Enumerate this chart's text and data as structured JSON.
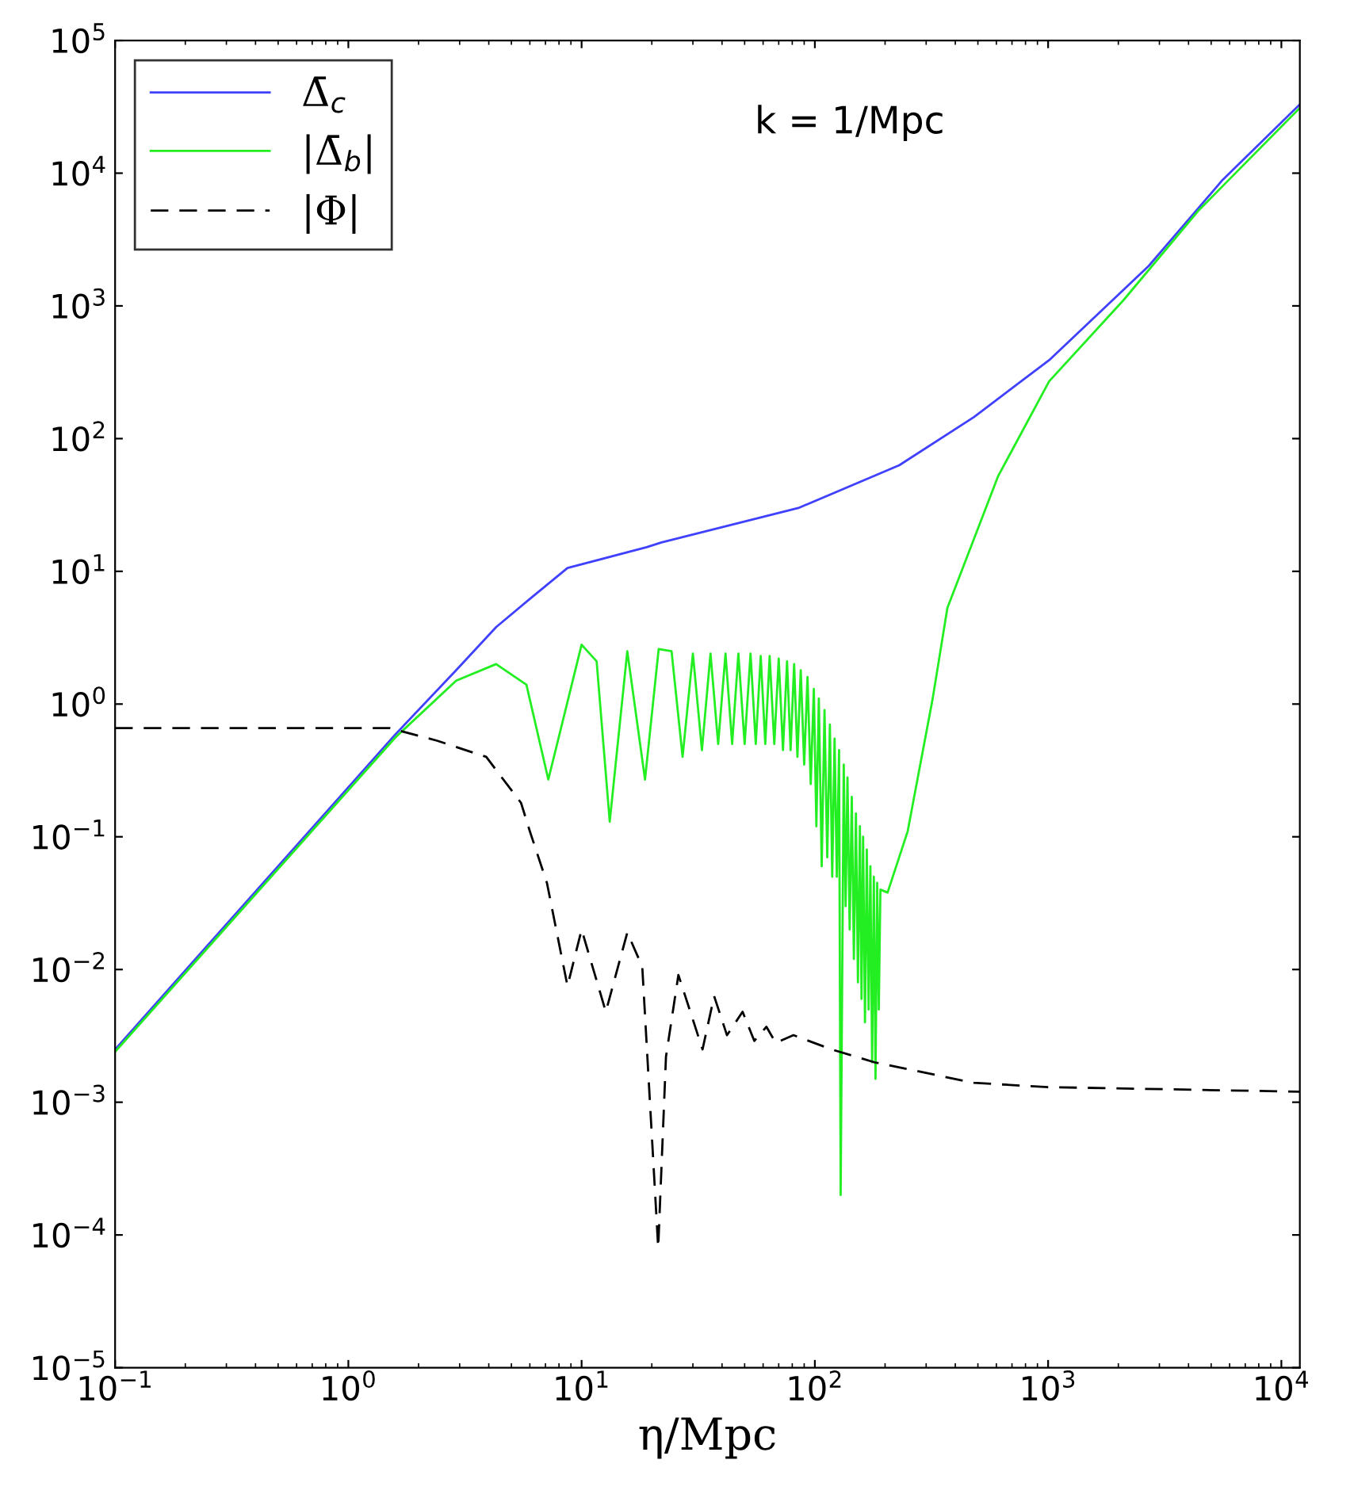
{
  "chart_data": {
    "type": "line",
    "xlabel": "η/Mpc",
    "log": "xy",
    "legend": "top left",
    "annotations": [
      "k = 1/Mpc"
    ],
    "xlim": [
      0.1,
      12000
    ],
    "ylim": [
      1e-05,
      100000.0
    ],
    "xticks": [
      {
        "value": 0.1,
        "label": "10$^{−1}$"
      },
      {
        "value": 1,
        "label": "10$^{0}$"
      },
      {
        "value": 10,
        "label": "10$^{1}$"
      },
      {
        "value": 100,
        "label": "10$^{2}$"
      },
      {
        "value": 1000,
        "label": "10$^{3}$"
      },
      {
        "value": 10000,
        "label": "10$^{4}$"
      }
    ],
    "yticks": [
      {
        "value": 1e-05,
        "label": "10$^{−5}$"
      },
      {
        "value": 0.0001,
        "label": "10$^{−4}$"
      },
      {
        "value": 0.001,
        "label": "10$^{−3}$"
      },
      {
        "value": 0.01,
        "label": "10$^{−2}$"
      },
      {
        "value": 0.1,
        "label": "10$^{−1}$"
      },
      {
        "value": 1,
        "label": "10$^{0}$"
      },
      {
        "value": 10,
        "label": "10$^{1}$"
      },
      {
        "value": 100,
        "label": "10$^{2}$"
      },
      {
        "value": 1000,
        "label": "10$^{3}$"
      },
      {
        "value": 10000,
        "label": "10$^{4}$"
      },
      {
        "value": 100000,
        "label": "10$^{5}$"
      }
    ],
    "series": [
      {
        "name": "Δ̄$_{c}$",
        "color": "#4040ff",
        "line_style": "solid",
        "x": [
          0.1,
          1.59,
          2.9,
          4.3,
          6.0,
          8.7,
          19,
          22,
          85,
          230,
          480,
          1010,
          2700,
          5600,
          12000
        ],
        "values": [
          0.0025,
          0.59,
          1.8,
          3.8,
          6.2,
          10.6,
          15.2,
          16.5,
          30,
          63,
          145,
          390,
          2000,
          8900,
          33000
        ]
      },
      {
        "name": "|Δ̄$_{b}$|",
        "color": "#22ee22",
        "line_style": "solid",
        "x": [
          0.1,
          1.59,
          2.9,
          4.3,
          5.8,
          7.2,
          10,
          11.6,
          13.2,
          15.7,
          18.7,
          21.4,
          24.3,
          27.1,
          30,
          32.8,
          35.7,
          38.5,
          41.4,
          44.2,
          47,
          50,
          53,
          55.8,
          58.6,
          61.3,
          64,
          67,
          70,
          73,
          76,
          78.7,
          81.5,
          84.2,
          87,
          90,
          93,
          96,
          99,
          101.5,
          104,
          107,
          110,
          113,
          116,
          118.7,
          121.5,
          124.2,
          127,
          129,
          133,
          135.5,
          138,
          141,
          144,
          147,
          150,
          153,
          156,
          158.5,
          161,
          164,
          167,
          170,
          173,
          176,
          179,
          182,
          185,
          188,
          191,
          205,
          250,
          320,
          370,
          610,
          1010,
          2100,
          4400,
          12000
        ],
        "values": [
          0.0024,
          0.56,
          1.5,
          2.0,
          1.4,
          0.27,
          2.8,
          2.1,
          0.13,
          2.5,
          0.27,
          2.6,
          2.5,
          0.4,
          2.4,
          0.45,
          2.4,
          0.5,
          2.4,
          0.5,
          2.4,
          0.5,
          2.4,
          0.5,
          2.3,
          0.5,
          2.3,
          0.5,
          2.2,
          0.45,
          2.1,
          0.45,
          2.0,
          0.4,
          1.8,
          0.35,
          1.6,
          0.25,
          1.3,
          0.12,
          1.1,
          0.06,
          0.9,
          0.07,
          0.7,
          0.05,
          0.55,
          0.05,
          0.45,
          0.0002,
          0.35,
          0.03,
          0.28,
          0.02,
          0.2,
          0.012,
          0.15,
          0.008,
          0.12,
          0.006,
          0.1,
          0.004,
          0.08,
          0.005,
          0.06,
          0.002,
          0.05,
          0.0015,
          0.045,
          0.005,
          0.04,
          0.038,
          0.11,
          1.1,
          5.3,
          52,
          270,
          1100,
          5200,
          31000
        ]
      },
      {
        "name": "|Φ|",
        "color": "#000000",
        "line_style": "dashed",
        "x": [
          0.1,
          1.5,
          2.4,
          3.9,
          5.5,
          6.0,
          7.1,
          8.7,
          10,
          12.7,
          15.7,
          18.2,
          21.3,
          23,
          26,
          33,
          37,
          42,
          49,
          55,
          62,
          68,
          81,
          118,
          180,
          480,
          1000,
          12000
        ],
        "values": [
          0.66,
          0.66,
          0.53,
          0.4,
          0.18,
          0.11,
          0.045,
          0.0075,
          0.02,
          0.0048,
          0.019,
          0.0105,
          8e-05,
          0.0022,
          0.0091,
          0.0025,
          0.0063,
          0.0032,
          0.0048,
          0.0029,
          0.0037,
          0.0028,
          0.0032,
          0.0025,
          0.002,
          0.0014,
          0.0013,
          0.0012
        ]
      }
    ]
  }
}
